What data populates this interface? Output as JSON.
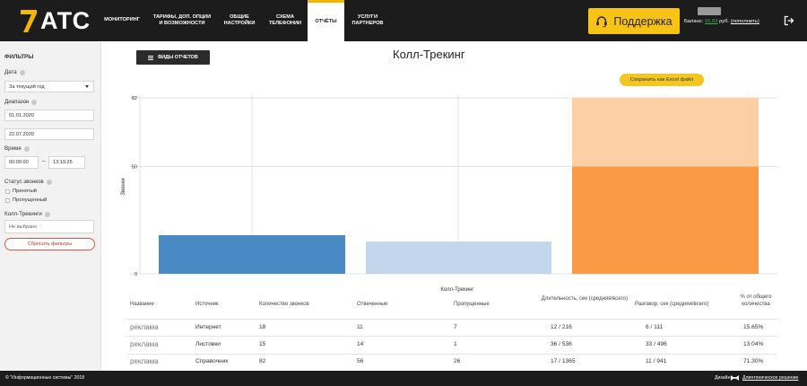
{
  "app": {
    "logo_text": "АТС"
  },
  "nav": {
    "items": [
      {
        "label": "МОНИТОРИНГ"
      },
      {
        "label": "ТАРИФЫ, ДОП. ОПЦИИ И ВОЗМОЖНОСТИ"
      },
      {
        "label": "ОБЩИЕ НАСТРОЙКИ"
      },
      {
        "label": "СХЕМА ТЕЛЕФОНИИ"
      },
      {
        "label": "ОТЧЁТЫ"
      },
      {
        "label": "УСЛУГИ ПАРТНЕРОВ"
      }
    ],
    "active_index": 4,
    "support_label": "Поддержка",
    "balance_label": "Баланс:",
    "balance_amount": "56.83",
    "balance_currency": "руб.",
    "balance_topup": "(пополнить)"
  },
  "sidebar": {
    "title": "ФИЛЬТРЫ",
    "date_label": "Дата",
    "date_value": "За текущий год",
    "range_label": "Диапазон",
    "range_from": "01.01.2020",
    "range_to": "22.07.2020",
    "time_label": "Время",
    "time_from": "00:00:00",
    "time_to": "13:19:25",
    "status_label": "Статус звонков",
    "status_options": [
      "Принятый",
      "Пропущенный"
    ],
    "tracking_label": "Колл-Трекинги",
    "tracking_value": "Не выбрано",
    "reset_label": "Сбросить фильтры"
  },
  "main": {
    "reports_button": "ВИДЫ ОТЧЕТОВ",
    "title": "Колл-Трекинг",
    "excel_button": "Сохранить как Excel файл"
  },
  "chart_data": {
    "type": "bar",
    "xlabel": "Колл-Трекинг",
    "ylabel": "Звонки",
    "yticks": [
      0,
      50,
      82
    ],
    "ylim": [
      0,
      82
    ],
    "grid": true,
    "colors": {
      "blue": "#4a8ac4",
      "light_blue": "#c2d6ec",
      "orange": "#fb9a45",
      "peach": "#fcd0a4",
      "grid": "#e3e3e3"
    },
    "bars": [
      {
        "source": "Интернет",
        "value": 18,
        "color": "#4a8ac4"
      },
      {
        "source": "Листовки",
        "value": 15,
        "color": "#c2d6ec"
      },
      {
        "source": "Справочник",
        "value": 82,
        "segments": [
          {
            "value": 50,
            "color": "#fb9a45"
          },
          {
            "value": 32,
            "color": "#fcd0a4"
          }
        ]
      }
    ]
  },
  "table": {
    "headers": [
      "Название",
      "Источник",
      "Количество звонков",
      "Отвеченные",
      "Пропущенные",
      "Длительность, сек (средняя/всего)",
      "Разговор, сек (средняя/всего)",
      "% от общего количества"
    ],
    "rows": [
      [
        "реклама",
        "Интернет",
        "18",
        "11",
        "7",
        "12 / 216",
        "6 / 111",
        "15.65%"
      ],
      [
        "реклама",
        "Листовки",
        "15",
        "14",
        "1",
        "36 / 536",
        "33 / 496",
        "13.04%"
      ],
      [
        "реклама",
        "Справочник",
        "82",
        "56",
        "26",
        "17 / 1365",
        "11 / 941",
        "71.30%"
      ]
    ]
  },
  "footer": {
    "copyright": "© \"Информационные системы\" 2018",
    "design_label": "Дизайн",
    "design_link": "Длинтяническое решение"
  }
}
